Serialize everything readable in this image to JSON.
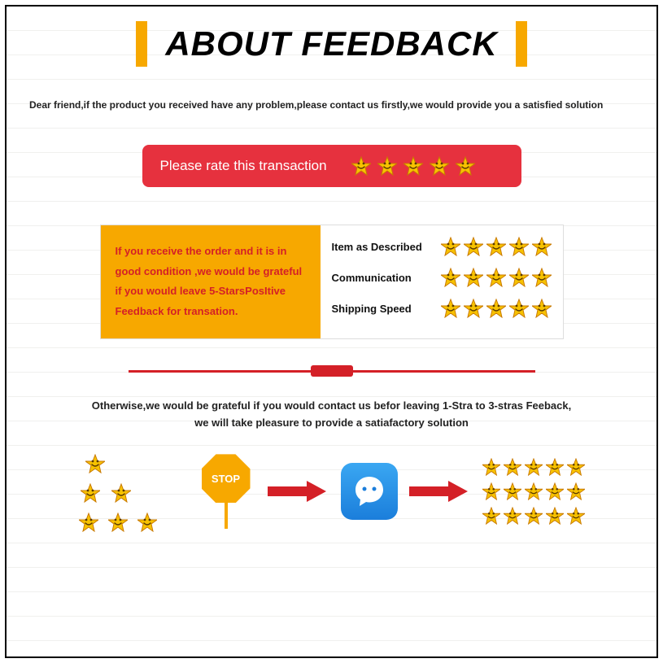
{
  "colors": {
    "accent_orange": "#f7a800",
    "accent_red": "#e6313e",
    "text_red": "#d42027",
    "star_fill": "#f7c200",
    "star_stroke": "#c97a00",
    "chat_bg_top": "#3aa7f2",
    "chat_bg_bottom": "#1b7edb",
    "border": "#000000",
    "bg": "#ffffff"
  },
  "header": {
    "title": "ABOUT FEEDBACK"
  },
  "intro": "Dear friend,if the product you received have any problem,please contact us firstly,we would provide you a satisfied  solution",
  "rate_bar": {
    "text": "Please rate this transaction",
    "stars": 5
  },
  "panel": {
    "left_text": "If you receive the order and it is in good condition ,we would be grateful if you would leave 5-StarsPosItive Feedback for transation.",
    "ratings": [
      {
        "label": "Item as Described",
        "stars": 5
      },
      {
        "label": "Communication",
        "stars": 5
      },
      {
        "label": "Shipping Speed",
        "stars": 5
      }
    ]
  },
  "otherwise": {
    "line1": "Otherwise,we would be grateful if you would contact us befor leaving 1-Stra to 3-stras Feeback,",
    "line2": "we will take pleasure to provide a satiafactory solution"
  },
  "flow": {
    "low_ratings": [
      1,
      2,
      3
    ],
    "stop_label": "STOP",
    "high_ratings": [
      5,
      5,
      5
    ]
  }
}
